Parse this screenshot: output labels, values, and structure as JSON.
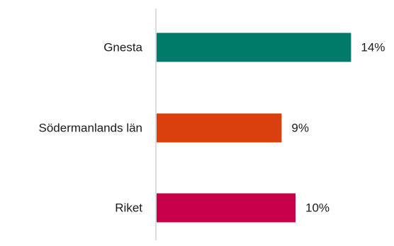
{
  "chart_data": {
    "type": "bar",
    "orientation": "horizontal",
    "categories": [
      "Gnesta",
      "Södermanlands län",
      "Riket"
    ],
    "values": [
      14,
      9,
      10
    ],
    "value_labels": [
      "14%",
      "9%",
      "10%"
    ],
    "unit": "%",
    "colors": [
      "#007a6b",
      "#d9400e",
      "#c8004b"
    ],
    "xlim": [
      0,
      16
    ],
    "grid": false,
    "legend": "none"
  }
}
